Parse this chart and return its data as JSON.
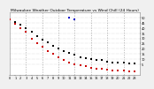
{
  "title": "Milwaukee Weather Outdoor Temperature vs Wind Chill (24 Hours)",
  "title_fontsize": 3.2,
  "background_color": "#f0f0f0",
  "plot_bg_color": "#ffffff",
  "grid_color": "#aaaaaa",
  "xlim": [
    0,
    24
  ],
  "ylim": [
    -5,
    55
  ],
  "ytick_values": [
    5,
    10,
    15,
    20,
    25,
    30,
    35,
    40,
    45,
    50
  ],
  "xtick_values": [
    0,
    1,
    2,
    3,
    4,
    5,
    6,
    7,
    8,
    9,
    10,
    11,
    12,
    13,
    14,
    15,
    16,
    17,
    18,
    19,
    20,
    21,
    22,
    23
  ],
  "temp_times": [
    0,
    1,
    2,
    3,
    4,
    5,
    6,
    7,
    8,
    9,
    10,
    11,
    12,
    13,
    14,
    15,
    16,
    17,
    18,
    19,
    20,
    21,
    22,
    23
  ],
  "temp_values": [
    48,
    46,
    43,
    40,
    36,
    32,
    29,
    26,
    23,
    20,
    18,
    16,
    14,
    12,
    11,
    10,
    9,
    9,
    8,
    7,
    7,
    7,
    6,
    6
  ],
  "windchill_times": [
    0,
    1,
    2,
    3,
    4,
    5,
    6,
    7,
    8,
    9,
    10,
    11,
    12,
    13,
    14,
    15,
    16,
    17,
    18,
    19,
    20,
    21,
    22,
    23
  ],
  "windchill_values": [
    48,
    44,
    40,
    36,
    30,
    25,
    22,
    18,
    15,
    12,
    9,
    7,
    5,
    4,
    3,
    2,
    1,
    1,
    0,
    -1,
    -1,
    -1,
    -2,
    -2
  ],
  "temp_color": "#000000",
  "windchill_color": "#cc0000",
  "blue_dot_times": [
    11,
    12
  ],
  "blue_dot_values": [
    50,
    48
  ],
  "blue_color": "#0000cc",
  "marker_size": 2.5,
  "vgrid_times": [
    3,
    6,
    9,
    12,
    15,
    18,
    21
  ],
  "tick_fontsize": 2.5
}
